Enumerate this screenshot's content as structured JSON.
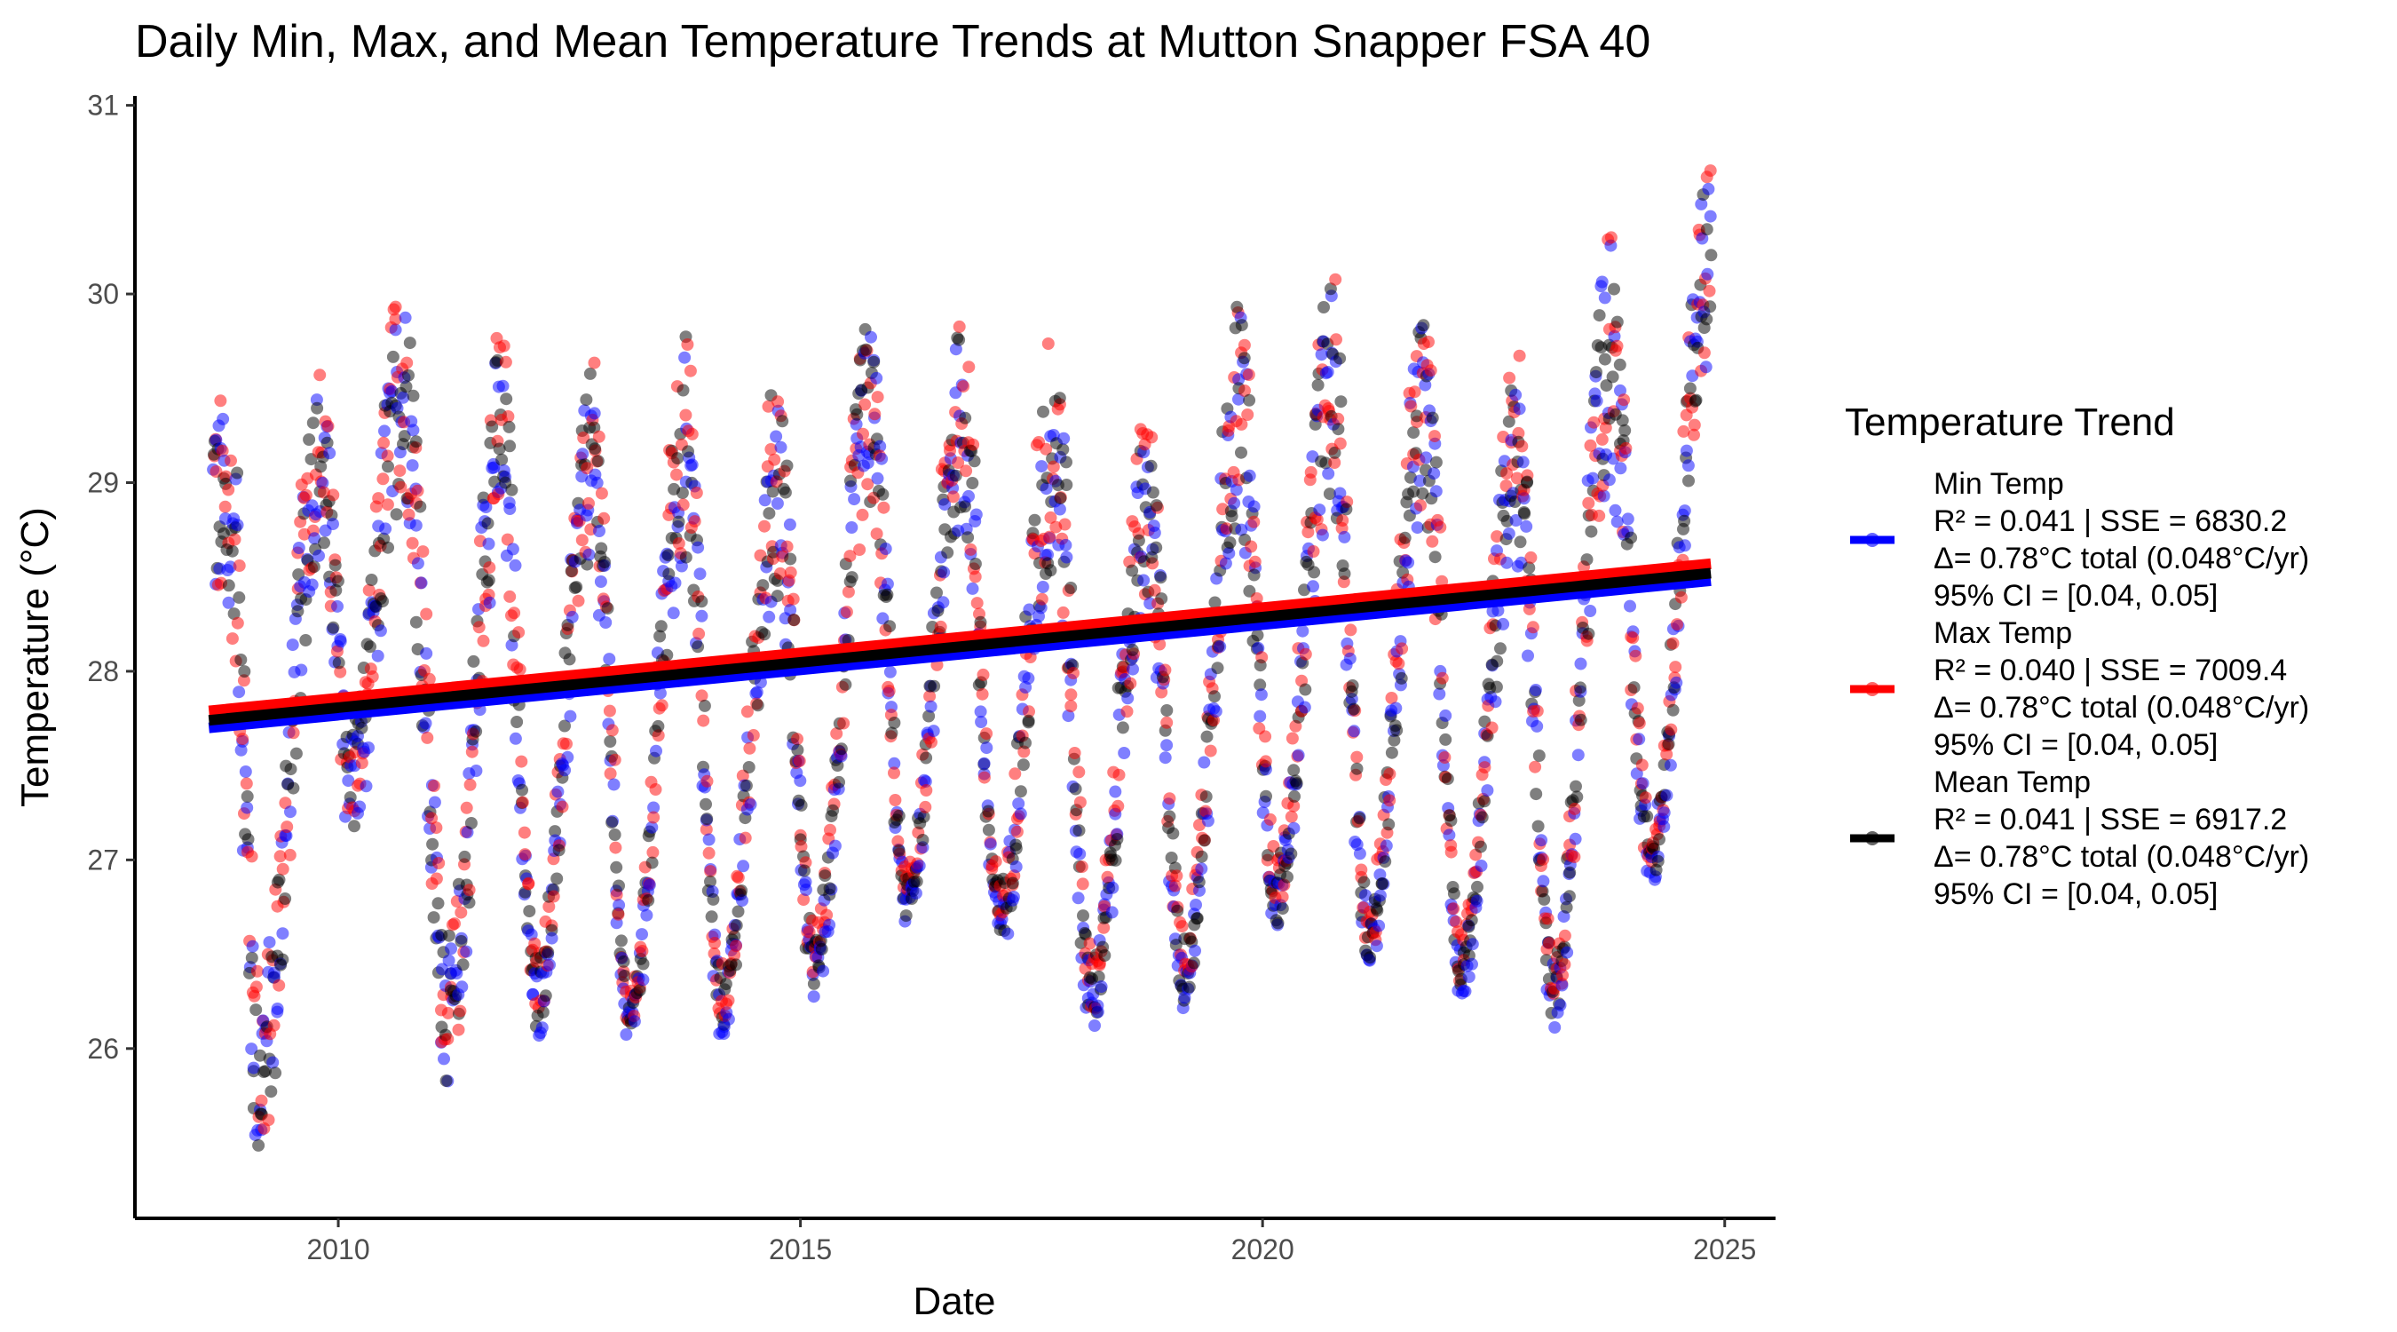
{
  "chart_data": {
    "type": "scatter",
    "title": "Daily Min, Max, and Mean Temperature Trends at Mutton Snapper FSA 40",
    "xlabel": "Date",
    "ylabel": "Temperature (°C)",
    "xlim": [
      2007.8,
      2025.55
    ],
    "ylim": [
      25.1,
      31.05
    ],
    "x_ticks": [
      2010,
      2015,
      2020,
      2025
    ],
    "x_tick_labels": [
      "2010",
      "2015",
      "2020",
      "2025"
    ],
    "y_ticks": [
      26,
      27,
      28,
      29,
      30,
      31
    ],
    "y_tick_labels": [
      "26",
      "27",
      "28",
      "29",
      "30",
      "31"
    ],
    "grid": false,
    "legend": {
      "title": "Temperature Trend",
      "position": "right",
      "entries": [
        {
          "name": "Min Temp",
          "color": "#0000ff",
          "lines": [
            "Min Temp",
            "R² = 0.041 | SSE = 6830.2",
            "Δ= 0.78°C total (0.048°C/yr)",
            "95% CI = [0.04, 0.05]"
          ]
        },
        {
          "name": "Max Temp",
          "color": "#ff0000",
          "lines": [
            "Max Temp",
            "R² = 0.040 | SSE = 7009.4",
            "Δ= 0.78°C total (0.048°C/yr)",
            "95% CI = [0.04, 0.05]"
          ]
        },
        {
          "name": "Mean Temp",
          "color": "#000000",
          "lines": [
            "Mean Temp",
            "R² = 0.041 | SSE = 6917.2",
            "Δ= 0.78°C total (0.048°C/yr)",
            "95% CI = [0.04, 0.05]"
          ]
        }
      ]
    },
    "trend_lines": [
      {
        "name": "Min Temp",
        "color": "#0000ff",
        "x": [
          2008.6,
          2024.85
        ],
        "y": [
          27.7,
          28.48
        ]
      },
      {
        "name": "Max Temp",
        "color": "#ff0000",
        "x": [
          2008.6,
          2024.85
        ],
        "y": [
          27.79,
          28.57
        ]
      },
      {
        "name": "Mean Temp",
        "color": "#000000",
        "x": [
          2008.6,
          2024.85
        ],
        "y": [
          27.74,
          28.52
        ]
      }
    ],
    "seasonal_envelope": {
      "x": [
        2008.65,
        2008.85,
        2009.15,
        2009.8,
        2010.15,
        2010.7,
        2011.2,
        2011.75,
        2012.15,
        2012.75,
        2013.15,
        2013.75,
        2014.15,
        2014.75,
        2015.15,
        2015.75,
        2016.15,
        2016.75,
        2017.15,
        2017.75,
        2018.15,
        2018.75,
        2019.15,
        2019.75,
        2020.15,
        2020.75,
        2021.15,
        2021.75,
        2022.15,
        2022.75,
        2023.15,
        2023.75,
        2024.2,
        2024.85
      ],
      "high": [
        29.55,
        29.3,
        26.4,
        29.6,
        27.8,
        30.1,
        26.6,
        29.8,
        26.5,
        29.6,
        26.3,
        29.8,
        26.4,
        29.6,
        26.6,
        29.9,
        26.9,
        29.85,
        26.9,
        29.85,
        26.5,
        29.35,
        26.6,
        29.95,
        27.0,
        30.1,
        26.8,
        29.95,
        26.6,
        29.7,
        26.5,
        30.35,
        27.2,
        30.8
      ],
      "low": [
        28.3,
        28.1,
        25.35,
        28.6,
        27.1,
        28.9,
        25.8,
        28.7,
        26.1,
        28.6,
        26.05,
        28.6,
        26.1,
        28.4,
        26.3,
        28.8,
        26.7,
        28.8,
        26.55,
        28.5,
        26.1,
        28.3,
        26.25,
        28.8,
        26.65,
        28.9,
        26.45,
        28.8,
        26.3,
        28.6,
        26.15,
        29.0,
        26.9,
        29.7
      ]
    }
  }
}
